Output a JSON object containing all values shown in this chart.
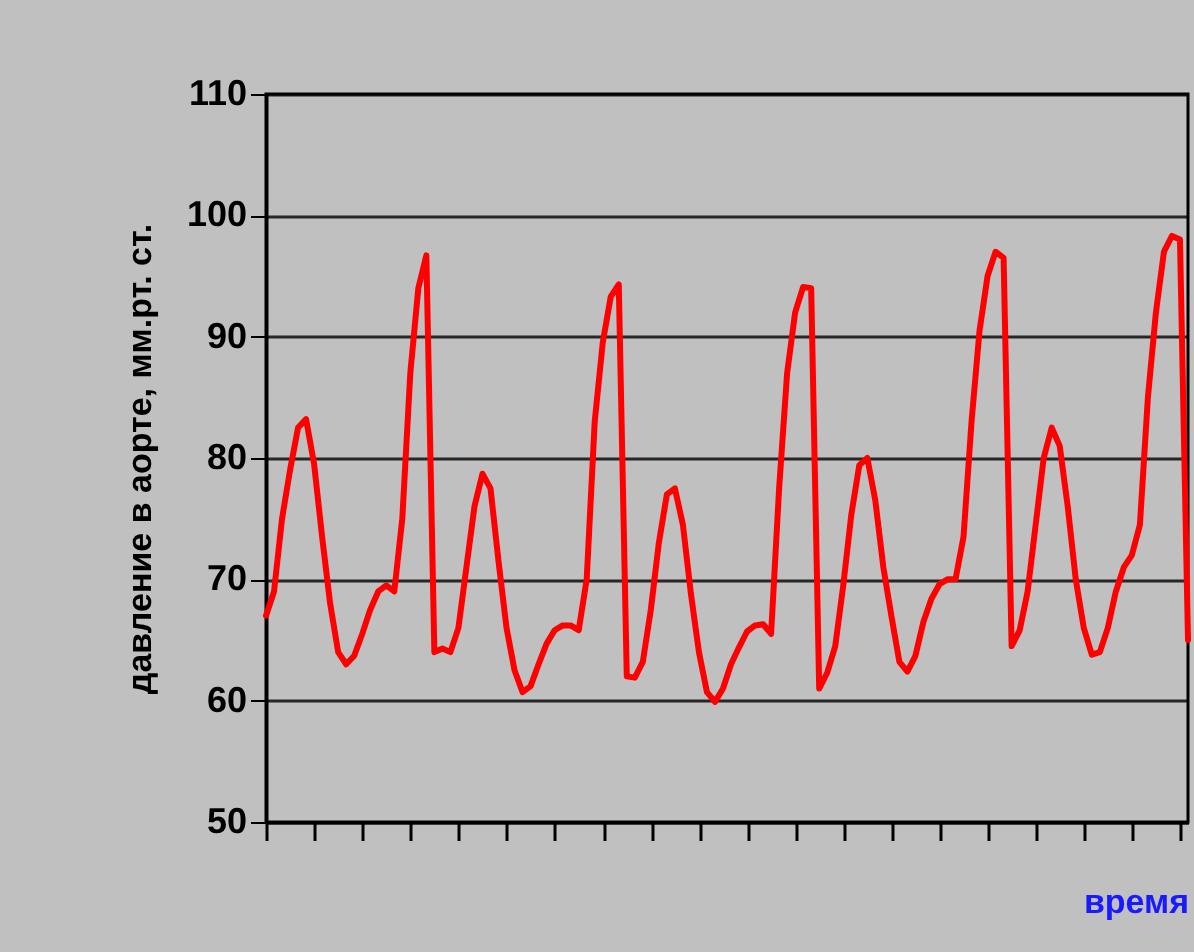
{
  "chart_data": {
    "type": "line",
    "ylabel": "давление в аорте, мм.рт. ст.",
    "xlabel": "время",
    "categories": [
      null,
      null,
      null,
      null,
      null,
      null,
      null,
      null,
      null,
      null,
      null,
      null,
      null,
      null,
      null,
      null,
      null,
      null,
      null,
      null,
      null,
      null,
      null,
      null,
      null,
      null,
      null,
      null,
      null,
      null,
      null,
      null,
      null,
      null,
      null,
      null,
      null,
      null,
      null,
      null,
      null,
      null,
      null,
      null,
      null,
      null,
      null,
      null,
      null,
      null,
      null,
      null,
      null,
      null,
      null,
      null,
      null,
      null,
      null,
      null,
      null,
      null,
      null,
      null,
      null,
      null,
      null,
      null,
      null,
      null,
      null,
      null,
      null,
      null,
      null,
      null,
      null,
      null,
      null,
      null,
      null,
      null,
      null,
      null,
      null,
      null,
      null,
      null,
      null,
      null,
      null,
      null,
      null,
      null,
      null,
      null,
      null,
      null,
      null,
      null,
      null,
      null,
      null,
      null,
      null,
      null,
      null,
      null,
      null,
      null,
      null,
      null,
      null,
      null,
      null,
      null
    ],
    "series": [
      {
        "color": "#ff0000",
        "values": [
          67,
          69,
          75,
          79,
          82.5,
          83.2,
          79.5,
          73.5,
          68,
          64,
          63,
          63.7,
          65.5,
          67.5,
          69,
          69.5,
          69,
          75,
          87,
          94,
          96.7,
          64,
          64.3,
          64,
          66,
          71,
          76,
          78.7,
          77.5,
          71.5,
          66,
          62.5,
          60.7,
          61.2,
          63,
          64.7,
          65.8,
          66.2,
          66.2,
          65.8,
          70,
          83,
          89.5,
          93.3,
          94.3,
          62,
          61.9,
          63.2,
          67.5,
          73,
          77,
          77.5,
          74.5,
          68.8,
          64,
          60.7,
          59.9,
          61,
          63,
          64.4,
          65.7,
          66.2,
          66.3,
          65.5,
          77.5,
          87,
          92,
          94.1,
          94,
          61,
          62.3,
          64.5,
          69.5,
          75.3,
          79.4,
          80,
          76.5,
          71,
          67,
          63.2,
          62.4,
          63.7,
          66.5,
          68.4,
          69.6,
          70,
          70,
          73.5,
          83,
          90.5,
          95,
          97,
          96.5,
          64.5,
          65.8,
          69,
          74.5,
          80,
          82.5,
          81,
          76,
          70,
          66,
          63.8,
          64,
          66,
          69,
          71,
          72,
          74.5,
          85,
          92,
          97,
          98.3,
          98,
          65
        ]
      }
    ],
    "ylim": [
      50,
      110
    ],
    "yticks": [
      50,
      60,
      70,
      80,
      90,
      100,
      110
    ],
    "grid": "y",
    "tick_labels": "y",
    "marker": "none",
    "line_style": "solid"
  }
}
